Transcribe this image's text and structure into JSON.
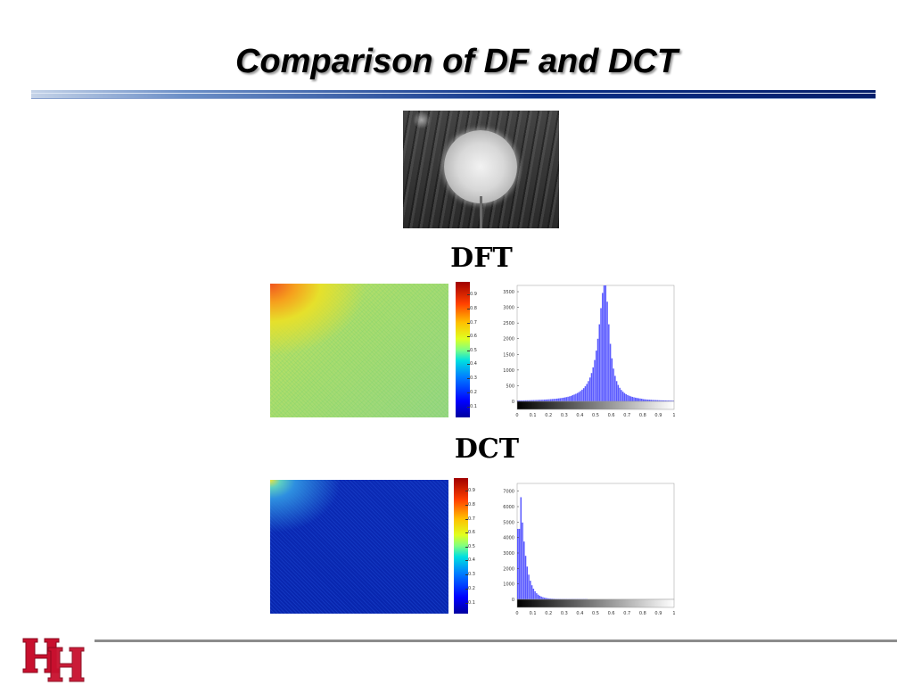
{
  "slide": {
    "title": "Comparison of DF and DCT",
    "dft_label": "DFT",
    "dct_label": "DCT"
  },
  "colors": {
    "title_rule": "#0a2f86",
    "histogram_bars": "#5a5aff",
    "logo_red": "#c8102e"
  },
  "icons": {
    "photo": "dandelion-grayscale-photo",
    "logo": "uh-interlocking-logo"
  },
  "chart_data": [
    {
      "type": "heatmap",
      "id": "dft-heatmap",
      "colorbar_ticks": [
        "0.1",
        "0.2",
        "0.3",
        "0.4",
        "0.5",
        "0.6",
        "0.7",
        "0.8",
        "0.9"
      ]
    },
    {
      "type": "bar",
      "id": "dft-histogram",
      "x_ticks": [
        "0",
        "0.1",
        "0.2",
        "0.3",
        "0.4",
        "0.5",
        "0.6",
        "0.7",
        "0.8",
        "0.9",
        "1"
      ],
      "y_ticks": [
        "0",
        "500",
        "1000",
        "1500",
        "2000",
        "2500",
        "3000",
        "3500"
      ],
      "xlim": [
        0,
        1
      ],
      "ylim": [
        0,
        3700
      ],
      "peak": 0.56,
      "peak_value": 3800,
      "spread_left": 0.07,
      "spread_right": 0.05,
      "tail_floor": 8
    },
    {
      "type": "heatmap",
      "id": "dct-heatmap",
      "colorbar_ticks": [
        "0.1",
        "0.2",
        "0.3",
        "0.4",
        "0.5",
        "0.6",
        "0.7",
        "0.8",
        "0.9"
      ]
    },
    {
      "type": "bar",
      "id": "dct-histogram",
      "x_ticks": [
        "0",
        "0.1",
        "0.2",
        "0.3",
        "0.4",
        "0.5",
        "0.6",
        "0.7",
        "0.8",
        "0.9",
        "1"
      ],
      "y_ticks": [
        "0",
        "1000",
        "2000",
        "3000",
        "4000",
        "5000",
        "6000",
        "7000"
      ],
      "xlim": [
        0,
        1
      ],
      "ylim": [
        0,
        7500
      ],
      "peak": 0.02,
      "peak_value": 7600,
      "decay": 0.035,
      "tail_floor": 20
    }
  ]
}
